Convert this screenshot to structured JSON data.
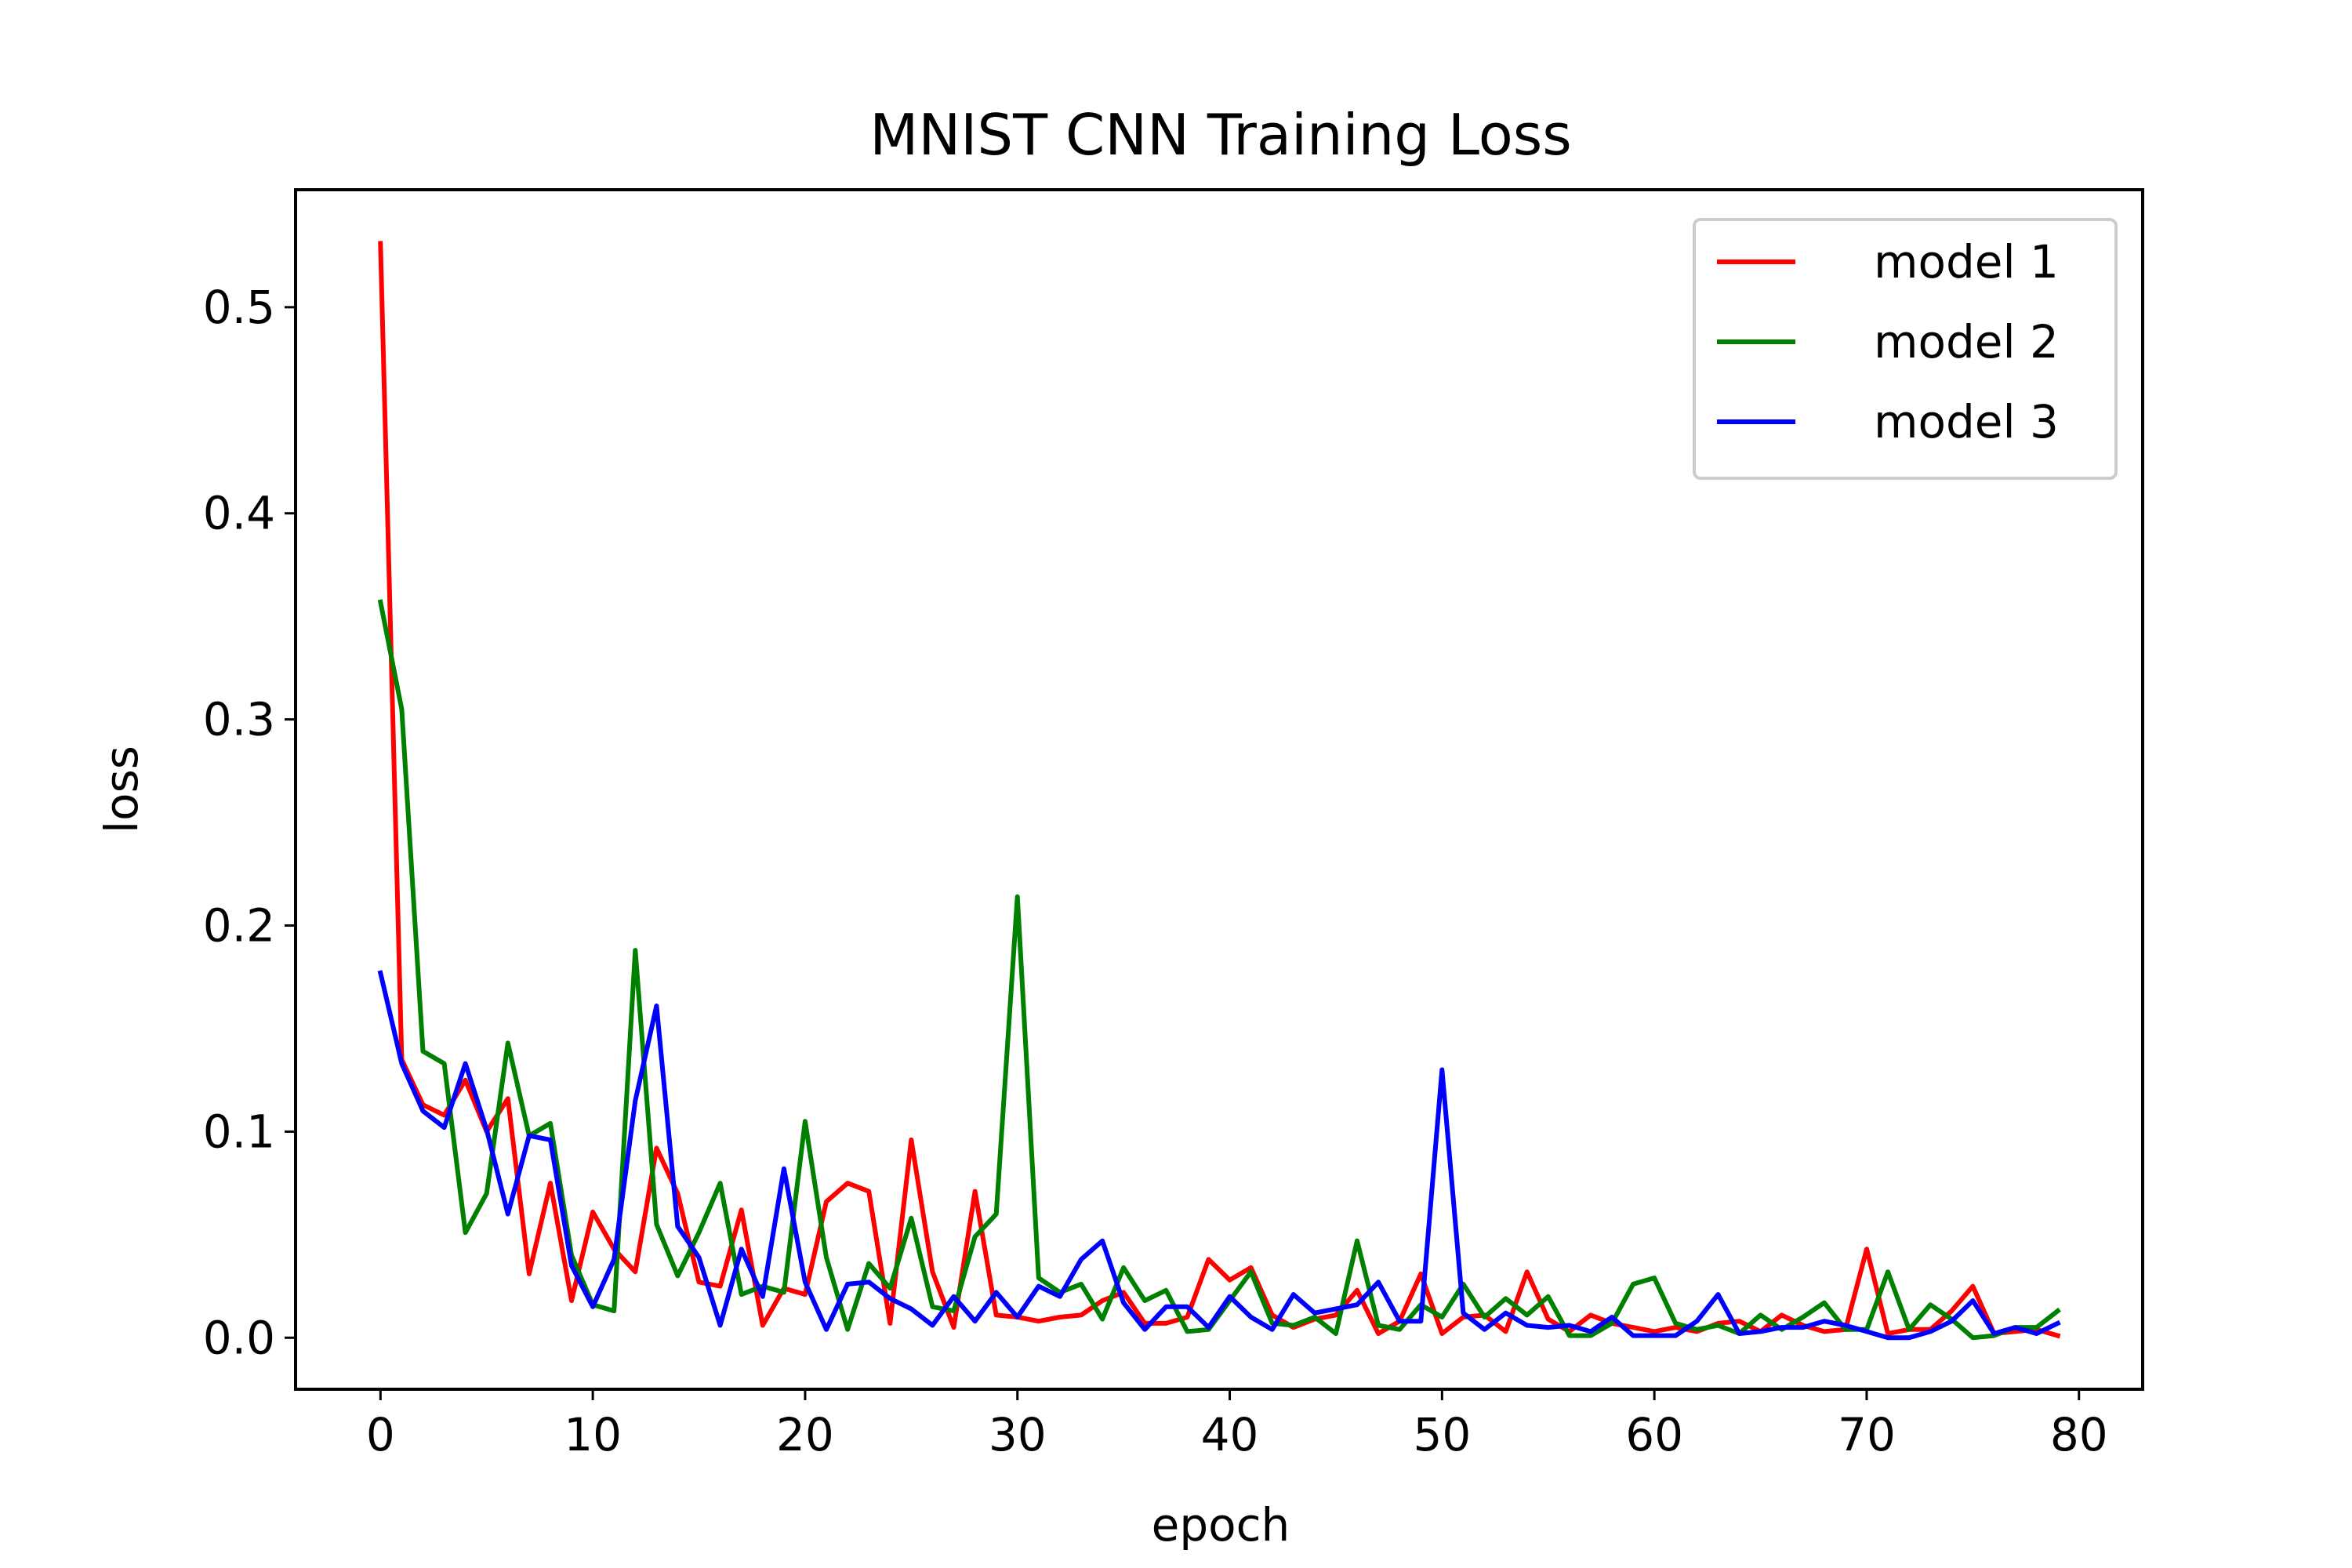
{
  "chart_data": {
    "type": "line",
    "title": "MNIST CNN Training Loss",
    "xlabel": "epoch",
    "ylabel": "loss",
    "xlim": [
      -4,
      83
    ],
    "ylim": [
      -0.025,
      0.557
    ],
    "xticks": [
      0,
      10,
      20,
      30,
      40,
      50,
      60,
      70,
      80
    ],
    "yticks": [
      0.0,
      0.1,
      0.2,
      0.3,
      0.4,
      0.5
    ],
    "xtick_labels": [
      "0",
      "10",
      "20",
      "30",
      "40",
      "50",
      "60",
      "70",
      "80"
    ],
    "ytick_labels": [
      "0.0",
      "0.1",
      "0.2",
      "0.3",
      "0.4",
      "0.5"
    ],
    "grid": false,
    "legend_position": "top-right",
    "x": [
      0,
      1,
      2,
      3,
      4,
      5,
      6,
      7,
      8,
      9,
      10,
      11,
      12,
      13,
      14,
      15,
      16,
      17,
      18,
      19,
      20,
      21,
      22,
      23,
      24,
      25,
      26,
      27,
      28,
      29,
      30,
      31,
      32,
      33,
      34,
      35,
      36,
      37,
      38,
      39,
      40,
      41,
      42,
      43,
      44,
      45,
      46,
      47,
      48,
      49,
      50,
      51,
      52,
      53,
      54,
      55,
      56,
      57,
      58,
      59,
      60,
      61,
      62,
      63,
      64,
      65,
      66,
      67,
      68,
      69,
      70,
      71,
      72,
      73,
      74,
      75,
      76,
      77,
      78,
      79
    ],
    "series": [
      {
        "name": "model 1",
        "color": "#ff0000",
        "values": [
          0.531,
          0.135,
          0.113,
          0.108,
          0.125,
          0.1,
          0.116,
          0.031,
          0.075,
          0.018,
          0.061,
          0.043,
          0.032,
          0.092,
          0.07,
          0.027,
          0.025,
          0.062,
          0.006,
          0.024,
          0.021,
          0.066,
          0.075,
          0.071,
          0.007,
          0.096,
          0.032,
          0.005,
          0.071,
          0.011,
          0.01,
          0.008,
          0.01,
          0.011,
          0.018,
          0.022,
          0.007,
          0.007,
          0.01,
          0.038,
          0.028,
          0.034,
          0.011,
          0.005,
          0.009,
          0.011,
          0.023,
          0.002,
          0.008,
          0.031,
          0.002,
          0.01,
          0.011,
          0.003,
          0.032,
          0.009,
          0.003,
          0.011,
          0.007,
          0.005,
          0.003,
          0.005,
          0.003,
          0.007,
          0.008,
          0.003,
          0.011,
          0.006,
          0.003,
          0.004,
          0.043,
          0.002,
          0.004,
          0.004,
          0.013,
          0.025,
          0.002,
          0.003,
          0.004,
          0.001
        ]
      },
      {
        "name": "model 2",
        "color": "#008000",
        "values": [
          0.357,
          0.305,
          0.139,
          0.133,
          0.051,
          0.07,
          0.143,
          0.098,
          0.104,
          0.04,
          0.016,
          0.013,
          0.188,
          0.055,
          0.03,
          0.051,
          0.075,
          0.021,
          0.025,
          0.022,
          0.105,
          0.039,
          0.004,
          0.036,
          0.024,
          0.058,
          0.015,
          0.013,
          0.049,
          0.06,
          0.214,
          0.029,
          0.022,
          0.026,
          0.009,
          0.034,
          0.018,
          0.023,
          0.003,
          0.004,
          0.018,
          0.032,
          0.007,
          0.006,
          0.01,
          0.002,
          0.047,
          0.006,
          0.004,
          0.016,
          0.01,
          0.026,
          0.01,
          0.019,
          0.011,
          0.02,
          0.001,
          0.001,
          0.007,
          0.026,
          0.029,
          0.007,
          0.004,
          0.006,
          0.002,
          0.011,
          0.004,
          0.01,
          0.017,
          0.004,
          0.004,
          0.032,
          0.004,
          0.016,
          0.009,
          0.0,
          0.001,
          0.005,
          0.005,
          0.013
        ]
      },
      {
        "name": "model 3",
        "color": "#0000ff",
        "values": [
          0.177,
          0.133,
          0.11,
          0.102,
          0.133,
          0.101,
          0.06,
          0.098,
          0.096,
          0.035,
          0.015,
          0.038,
          0.115,
          0.161,
          0.054,
          0.039,
          0.006,
          0.043,
          0.02,
          0.082,
          0.027,
          0.004,
          0.026,
          0.027,
          0.019,
          0.014,
          0.006,
          0.02,
          0.008,
          0.022,
          0.01,
          0.025,
          0.02,
          0.038,
          0.047,
          0.017,
          0.004,
          0.015,
          0.015,
          0.005,
          0.02,
          0.01,
          0.004,
          0.021,
          0.012,
          0.014,
          0.016,
          0.027,
          0.008,
          0.008,
          0.13,
          0.012,
          0.004,
          0.012,
          0.006,
          0.005,
          0.006,
          0.003,
          0.01,
          0.001,
          0.001,
          0.001,
          0.008,
          0.021,
          0.002,
          0.003,
          0.005,
          0.005,
          0.008,
          0.006,
          0.003,
          0.0,
          0.0,
          0.003,
          0.008,
          0.018,
          0.002,
          0.005,
          0.002,
          0.007
        ]
      }
    ]
  }
}
